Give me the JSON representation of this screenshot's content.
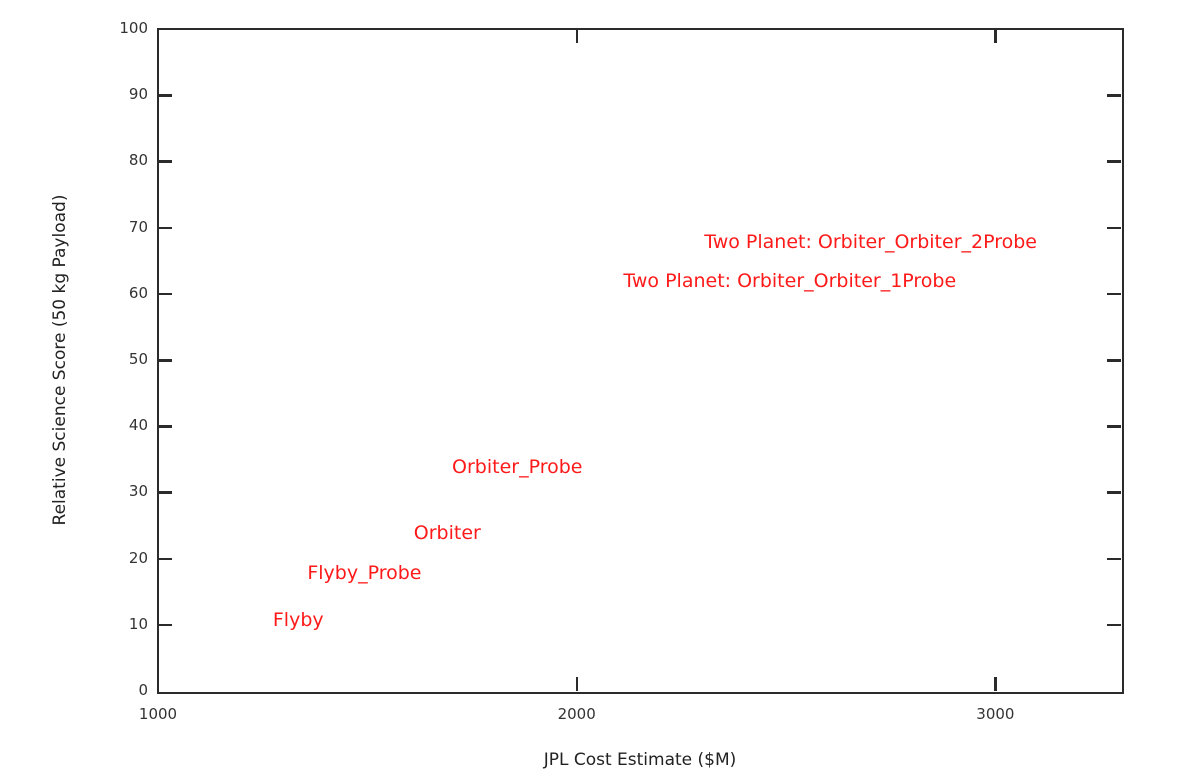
{
  "chart_data": {
    "type": "scatter",
    "title": "",
    "xlabel": "JPL Cost Estimate ($M)",
    "ylabel": "Relative Science Score (50 kg Payload)",
    "xlim": [
      1000,
      3300
    ],
    "ylim": [
      0,
      100
    ],
    "xticks": [
      1000,
      2000,
      3000
    ],
    "yticks": [
      0,
      10,
      20,
      30,
      40,
      50,
      60,
      70,
      80,
      90,
      100
    ],
    "grid": false,
    "marker": "text-label",
    "label_color": "#ff1a1a",
    "points": [
      {
        "label": "Flyby",
        "x": 1335,
        "y": 10.7
      },
      {
        "label": "Flyby_Probe",
        "x": 1493,
        "y": 17.8
      },
      {
        "label": "Orbiter",
        "x": 1691,
        "y": 23.8
      },
      {
        "label": "Orbiter_Probe",
        "x": 1858,
        "y": 33.9
      },
      {
        "label": "Two Planet: Orbiter_Orbiter_1Probe",
        "x": 2509,
        "y": 62.0
      },
      {
        "label": "Two Planet: Orbiter_Orbiter_2Probe",
        "x": 2702,
        "y": 67.9
      }
    ]
  }
}
